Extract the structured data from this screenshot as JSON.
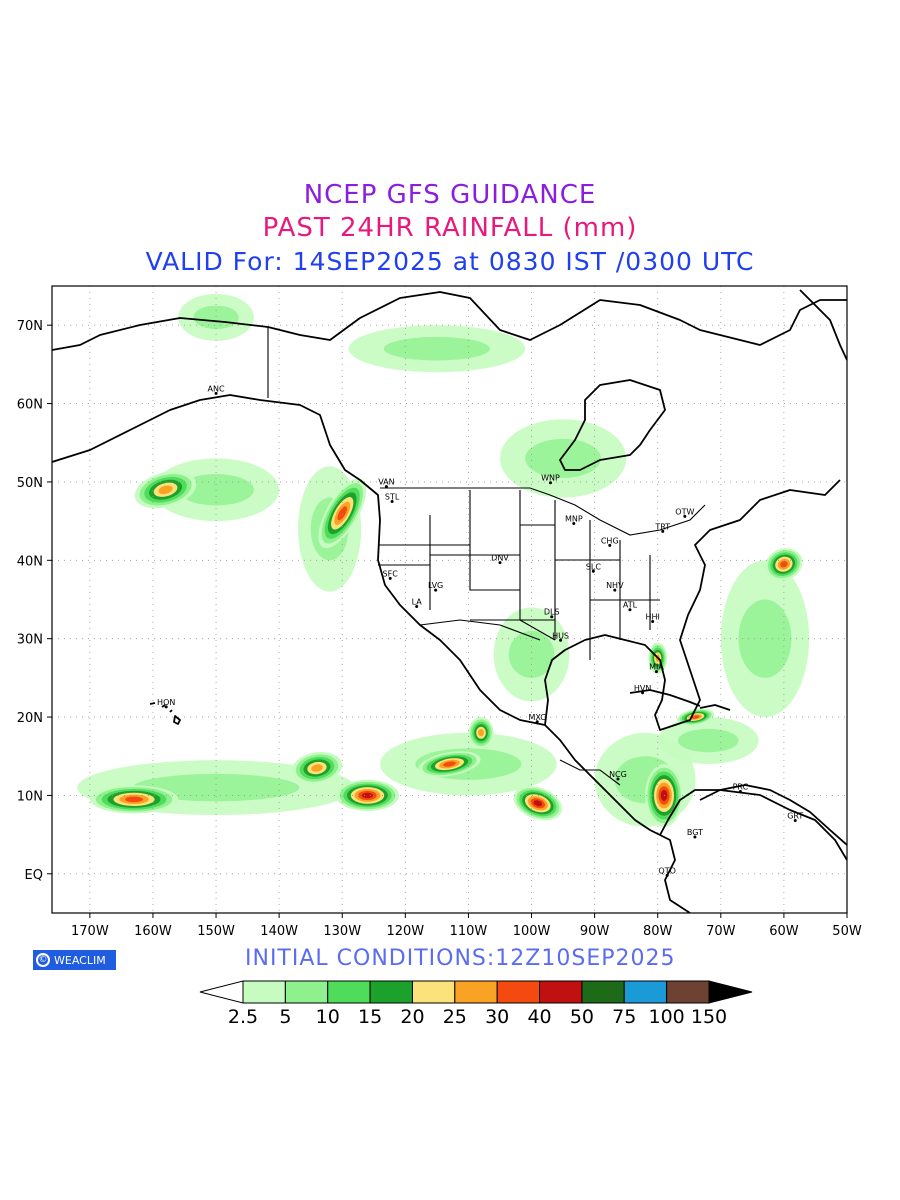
{
  "title": {
    "line1": "NCEP GFS GUIDANCE",
    "line2": "PAST 24HR RAINFALL (mm)",
    "line3": "VALID For: 14SEP2025 at 0830 IST /0300 UTC"
  },
  "initial_conditions": "INITIAL  CONDITIONS:12Z10SEP2025",
  "logo_text": "WEACLIM",
  "logo_symbol": "©",
  "lat_labels": [
    "70N",
    "60N",
    "50N",
    "40N",
    "30N",
    "20N",
    "10N",
    "EQ"
  ],
  "lat_values": [
    70,
    60,
    50,
    40,
    30,
    20,
    10,
    0
  ],
  "lon_labels": [
    "170W",
    "160W",
    "150W",
    "140W",
    "130W",
    "120W",
    "110W",
    "100W",
    "90W",
    "80W",
    "70W",
    "60W",
    "50W"
  ],
  "lon_values": [
    -170,
    -160,
    -150,
    -140,
    -130,
    -120,
    -110,
    -100,
    -90,
    -80,
    -70,
    -60,
    -50
  ],
  "colorbar": {
    "labels": [
      "2.5",
      "5",
      "10",
      "15",
      "20",
      "25",
      "30",
      "40",
      "50",
      "75",
      "100",
      "150"
    ],
    "colors": [
      "#c6fcc0",
      "#8ff08e",
      "#4fdc5a",
      "#1ca22a",
      "#fbe27a",
      "#f9a224",
      "#f44a10",
      "#c01010",
      "#1d6a18",
      "#1a9ad6",
      "#6e4232"
    ],
    "low_color": "#ffffff",
    "high_color": "#000000"
  },
  "cities": [
    {
      "code": "ANC",
      "lon": -150,
      "lat": 61.3
    },
    {
      "code": "VAN",
      "lon": -123,
      "lat": 49.4
    },
    {
      "code": "STL",
      "lon": -122.1,
      "lat": 47.5
    },
    {
      "code": "WNP",
      "lon": -97,
      "lat": 49.9
    },
    {
      "code": "MNP",
      "lon": -93.3,
      "lat": 44.7
    },
    {
      "code": "OTW",
      "lon": -75.7,
      "lat": 45.6
    },
    {
      "code": "TRT",
      "lon": -79.2,
      "lat": 43.7
    },
    {
      "code": "CHG",
      "lon": -87.6,
      "lat": 41.9
    },
    {
      "code": "DNV",
      "lon": -105,
      "lat": 39.7
    },
    {
      "code": "SFC",
      "lon": -122.4,
      "lat": 37.7
    },
    {
      "code": "SLC",
      "lon": -90.2,
      "lat": 38.6
    },
    {
      "code": "LVG",
      "lon": -115.2,
      "lat": 36.2
    },
    {
      "code": "NHV",
      "lon": -86.8,
      "lat": 36.2
    },
    {
      "code": "LA",
      "lon": -118.2,
      "lat": 34.1
    },
    {
      "code": "DLS",
      "lon": -96.8,
      "lat": 32.8
    },
    {
      "code": "ATL",
      "lon": -84.4,
      "lat": 33.7
    },
    {
      "code": "HHI",
      "lon": -80.8,
      "lat": 32.2
    },
    {
      "code": "HUS",
      "lon": -95.4,
      "lat": 29.8
    },
    {
      "code": "MIA",
      "lon": -80.2,
      "lat": 25.8
    },
    {
      "code": "HVN",
      "lon": -82.4,
      "lat": 23.1
    },
    {
      "code": "HON",
      "lon": -157.9,
      "lat": 21.3
    },
    {
      "code": "MXC",
      "lon": -99.1,
      "lat": 19.4
    },
    {
      "code": "NCG",
      "lon": -86.3,
      "lat": 12.1
    },
    {
      "code": "PRC",
      "lon": -66.9,
      "lat": 10.5
    },
    {
      "code": "GRT",
      "lon": -58.2,
      "lat": 6.8
    },
    {
      "code": "BGT",
      "lon": -74.1,
      "lat": 4.7
    },
    {
      "code": "QTO",
      "lon": -78.5,
      "lat": -0.2
    }
  ],
  "rain_features": [
    {
      "lon": -158,
      "lat": 49,
      "rx": 5,
      "ry": 2.2,
      "level": 5,
      "rot": -15
    },
    {
      "lon": -130,
      "lat": 46,
      "rx": 2.5,
      "ry": 5,
      "level": 6,
      "rot": 30
    },
    {
      "lon": -163,
      "lat": 9.5,
      "rx": 7,
      "ry": 1.8,
      "level": 6,
      "rot": 0
    },
    {
      "lon": -134,
      "lat": 13.5,
      "rx": 4,
      "ry": 2,
      "level": 5,
      "rot": -10
    },
    {
      "lon": -126,
      "lat": 10,
      "rx": 5,
      "ry": 2,
      "level": 7,
      "rot": 0
    },
    {
      "lon": -113,
      "lat": 14,
      "rx": 5,
      "ry": 1.5,
      "level": 6,
      "rot": -10
    },
    {
      "lon": -108,
      "lat": 18,
      "rx": 2,
      "ry": 2,
      "level": 5,
      "rot": 0
    },
    {
      "lon": -99,
      "lat": 9,
      "rx": 4,
      "ry": 2,
      "level": 7,
      "rot": 20
    },
    {
      "lon": -79,
      "lat": 10,
      "rx": 3,
      "ry": 4,
      "level": 7,
      "rot": 0
    },
    {
      "lon": -60,
      "lat": 39.5,
      "rx": 3,
      "ry": 2,
      "level": 6,
      "rot": -20
    },
    {
      "lon": -74,
      "lat": 20,
      "rx": 3,
      "ry": 1,
      "level": 6,
      "rot": -10
    },
    {
      "lon": -80,
      "lat": 27.5,
      "rx": 1.5,
      "ry": 2,
      "level": 5,
      "rot": 0
    }
  ]
}
